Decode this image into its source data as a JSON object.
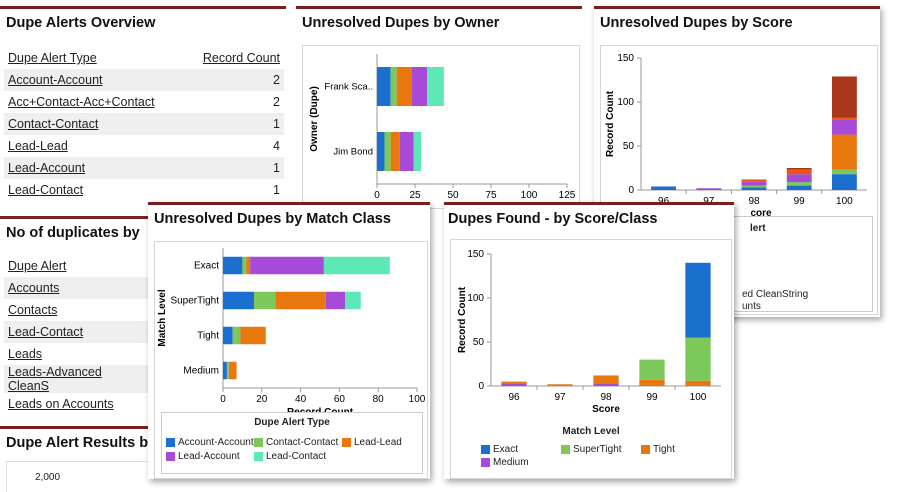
{
  "colors": {
    "exact": "#1a6fcf",
    "supertight": "#7cc85a",
    "tight": "#e8780e",
    "medium": "#a84ad8",
    "account_account": "#1a6fcf",
    "contact_contact": "#7cc85a",
    "lead_lead": "#e8780e",
    "lead_account": "#a84ad8",
    "lead_contact": "#5ee8b6",
    "dark_red": "#a8361a",
    "header_bar": "#7a1f1f"
  },
  "overview": {
    "title": "Dupe Alerts Overview",
    "col_type": "Dupe Alert Type",
    "col_count": "Record Count",
    "rows": [
      {
        "type": "Account-Account",
        "count": "2"
      },
      {
        "type": "Acc+Contact-Acc+Contact",
        "count": "2"
      },
      {
        "type": "Contact-Contact",
        "count": "1"
      },
      {
        "type": "Lead-Lead",
        "count": "4"
      },
      {
        "type": "Lead-Account",
        "count": "1"
      },
      {
        "type": "Lead-Contact",
        "count": "1"
      }
    ]
  },
  "noduplicates": {
    "title": "No of duplicates by",
    "col_alert": "Dupe Alert",
    "rows": [
      "Accounts",
      "Contacts",
      "Lead-Contact",
      "Leads",
      "Leads-Advanced CleanS",
      "Leads on Accounts"
    ]
  },
  "results": {
    "title": "Dupe Alert Results b",
    "tick": "2,000"
  },
  "by_owner": {
    "title": "Unresolved Dupes by Owner",
    "chart_data": {
      "type": "bar",
      "orientation": "horizontal",
      "stacked": true,
      "categories": [
        "Frank Sca..",
        "Jim Bond"
      ],
      "series": [
        {
          "values": [
            9,
            5
          ]
        },
        {
          "values": [
            4,
            4
          ]
        },
        {
          "values": [
            10,
            6
          ]
        },
        {
          "values": [
            10,
            9
          ]
        },
        {
          "values": [
            11,
            5
          ]
        }
      ],
      "xlim": [
        0,
        125
      ],
      "xticks": [
        "0",
        "25",
        "50",
        "75",
        "100",
        "125"
      ],
      "ylabel": "Owner (Dupe)"
    }
  },
  "by_score": {
    "title": "Unresolved Dupes by Score",
    "ylabel": "Record Count",
    "legend_partial": [
      "ed CleanString",
      "unts"
    ],
    "legend_heading_partial": "lert",
    "xlabel_partial": "core",
    "chart_data": {
      "type": "bar",
      "stacked": true,
      "categories": [
        "96",
        "97",
        "98",
        "99",
        "100"
      ],
      "series": [
        {
          "values": [
            4,
            1,
            3,
            5,
            18
          ]
        },
        {
          "values": [
            0,
            0,
            2,
            4,
            5
          ]
        },
        {
          "values": [
            0,
            0,
            0,
            0,
            40
          ]
        },
        {
          "values": [
            0,
            1,
            5,
            9,
            17
          ]
        },
        {
          "values": [
            0,
            0,
            2,
            5,
            2
          ]
        },
        {
          "values": [
            0,
            0,
            0,
            2,
            47
          ]
        }
      ],
      "ylim": [
        0,
        150
      ],
      "yticks": [
        "0",
        "50",
        "100",
        "150"
      ],
      "ylabel": "Record Count"
    }
  },
  "by_match_class": {
    "title": "Unresolved Dupes by Match Class",
    "xlabel": "Record Count",
    "ylabel": "Match Level",
    "legend_title": "Dupe Alert Type",
    "legend": [
      "Account-Account",
      "Contact-Contact",
      "Lead-Lead",
      "Lead-Account",
      "Lead-Contact"
    ],
    "chart_data": {
      "type": "bar",
      "orientation": "horizontal",
      "stacked": true,
      "categories": [
        "Exact",
        "SuperTight",
        "Tight",
        "Medium"
      ],
      "series": [
        {
          "name": "Account-Account",
          "values": [
            10,
            16,
            5,
            2
          ]
        },
        {
          "name": "Contact-Contact",
          "values": [
            2,
            11,
            4,
            1
          ]
        },
        {
          "name": "Lead-Lead",
          "values": [
            2,
            26,
            13,
            4
          ]
        },
        {
          "name": "Lead-Account",
          "values": [
            38,
            10,
            0,
            0
          ]
        },
        {
          "name": "Lead-Contact",
          "values": [
            34,
            8,
            0,
            0
          ]
        }
      ],
      "xlim": [
        0,
        100
      ],
      "xticks": [
        "0",
        "20",
        "40",
        "60",
        "80",
        "100"
      ],
      "xlabel": "Record Count",
      "ylabel": "Match Level"
    }
  },
  "found": {
    "title": "Dupes Found - by Score/Class",
    "xlabel": "Score",
    "ylabel": "Record Count",
    "legend_title": "Match Level",
    "legend": [
      "Exact",
      "SuperTight",
      "Tight",
      "Medium"
    ],
    "chart_data": {
      "type": "bar",
      "stacked": true,
      "categories": [
        "96",
        "97",
        "98",
        "99",
        "100"
      ],
      "series": [
        {
          "name": "Medium",
          "values": [
            3,
            0,
            3,
            0,
            0
          ]
        },
        {
          "name": "Tight",
          "values": [
            2,
            2,
            9,
            7,
            6
          ]
        },
        {
          "name": "SuperTight",
          "values": [
            0,
            0,
            0,
            23,
            49
          ]
        },
        {
          "name": "Exact",
          "values": [
            0,
            0,
            0,
            0,
            85
          ]
        }
      ],
      "ylim": [
        0,
        150
      ],
      "yticks": [
        "0",
        "50",
        "100",
        "150"
      ],
      "xlabel": "Score",
      "ylabel": "Record Count"
    }
  }
}
